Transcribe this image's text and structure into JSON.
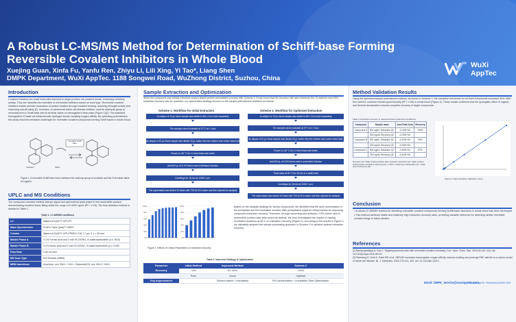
{
  "header": {
    "title": "A Robust LC-MS/MS Method for Determination of Schiff-base Forming Reversible Covalent Inhibitors in Whole Blood",
    "authors": "Xuejing Guan, Xinfa Fu, Yanfu Ren, Zhiyu Li, Lili Xing, Yi Tao*, Liang Shen",
    "affiliation": "DMPK Department, WuXi AppTec. 1188 Songwei Road, WuZhong District, Suzhou, China",
    "logo_text_1": "WuXi",
    "logo_text_2": "AppTec",
    "logo_icon": "wuxi-wave-logo"
  },
  "intro": {
    "title": "Introduction",
    "body": "Covalent inhibitors are small molecules that bind to target proteins via covalent bonds, enhancing inhibitory activity. They are classified as reversible or irreversible inhibitors based on bond type. Reversible covalent inhibitors enable periodic restoration of protein function through transient binding, reducing off-target toxicity and improving overall safety [1]. Voxelotor, a commercial sickle cell disease inhibitor, uses its aldehyde group to reversibly form a Schiff base with N-terminal valine on hemoglobin's beta chain (Figure 1)[2]. This stabilizes hemoglobin's R-state via intramolecular hydrogen bonds, boosting oxygen affinity. By optimizing pretreatment, this study resolved extraction challenges for reversible covalent compounds forming Schiff bases in whole blood.",
    "figure_caption": "Figure 1. A reversible Schiff base forms between the carbonyl group of voxelotor and the N-terminal valine of a globin",
    "fig_label_left": "Voxelotor",
    "fig_label_mid": "Valine",
    "fig_label_box": "Formation Schiff Base"
  },
  "uplc": {
    "title": "UPLC and MS Conditions",
    "body": "The compound voxelotor exhibits intense signal and symmetrical peak shape in test acetonitrile solution, demonstrating excellent linear fitting within the range of 5-3000 ng/mL (R² > 0.99). The final detection method is detailed in Table 1.",
    "table_title": "Table 1. LC-MS/MS conditions",
    "rows": [
      {
        "k": "LC",
        "v": "Waters ACQUITY UPLC®"
      },
      {
        "k": "Mass Spectrometer",
        "v": "SCIEX Triple Quad™ 6500+"
      },
      {
        "k": "Column",
        "v": "Waters ACQUITY UPLC®BEH C18 1.7 μm 2.1 × 50 mm"
      },
      {
        "k": "Mobile Phase A",
        "v": "0.1% Formic acid and 2 mM HCOONH₄ in water/acetonitrile (v:v, 95:5)"
      },
      {
        "k": "Mobile Phase B",
        "v": "0.1% formic acid and 2 mM HCOONH₄ in water/acetonitrile (v:v, 5:95)"
      },
      {
        "k": "Flow Rate",
        "v": "0.60 mL/min"
      },
      {
        "k": "MS Scan Type",
        "v": "ESI Positive (MRM)"
      },
      {
        "k": "MRM transitions",
        "v": "Voxelotor: m/z 338.1 / 130.1; Glyburide(IS): m/z 494.2 / 169.1"
      }
    ]
  },
  "extraction": {
    "title": "Sample Extraction and Optimization",
    "body": "When the compound was initially extracted using a simple protein precipitation process with Scheme 1, it was found that the recovery rate was extremely low. To achieve over 90% extraction recovery rate for voxelotor, our optimization strategy focuses on the sample pretreatment workflow as follows:",
    "scheme1_title": "Scheme 1. Workflow for Initial Extraction",
    "scheme1_steps": [
      "An aliquot of 10 μL blood sample was added to the 1.5 mL tube separately",
      "The samples were incubated at 37°C for 1 hour",
      "An aliquot of 10 μL blood sample was diluted 20 μL water, then the mixture was vortex mixed well.",
      "Frozen to -80 °C for 1 h then thaw and vortex",
      "Add 600 μL of 0.1% formic acid in Methanol Solution",
      "Centrifuge for 15 min at 12000 r.p.m.",
      "The supernatant was diluted 10 times with 70% ACN in water and then injected for analysis"
    ],
    "scheme2_title": "Scheme 2. Workflow for Optimized Extraction",
    "scheme2_steps": [
      "An aliquot of 10 μL blood sample was added to the 1.5 mL tube separately",
      "The samples were incubated at 37°C for 1 hour",
      "An aliquot of 10 μL blood sample was diluted 20 μL water, then the mixture was vortex mixed well.",
      "Frozen to -80 °C for 1 h then thaw and vortex",
      "Add 600 μL of 0.5% formic acid in acetonitrile Solution",
      "Thaw twice at 45 °C for 30 min in a water bath",
      "Centrifuge for 15 min at 12000 r.p.m.",
      "The supernatant was diluted 10 times with 70% ACN in water and then injected for analysis"
    ],
    "result_text": "Based on the analysis strategy for similar compounds, we identified that the acid concentration in the precipitant and the incubation duration after precipitation might be critical factors for improving compound extraction recovery. Therefore, through screening and selection, 0.5% formic acid in acetonitrile solution was determined as optimal. We then investigated the impact of varying incubation durations at 45°C on extraction recovery (Figure 2). According to the results in Figure 2, we ultimately adopted the sample processing approach in Scheme 2 to achieve optimal extraction recovery.",
    "fig2_caption": "Figure 2. Effects of Critical Parameters on extraction recovery",
    "table2_title": "Table 2. Improved Strategy & Optimization",
    "table2_headers": [
      "Parameter",
      "Initial Method",
      "Improved Method",
      "Scheme 2"
    ],
    "table2_rows": [
      [
        "Recovery",
        "~4%",
        "61~84%",
        ">90%"
      ],
      [
        "Linearity",
        "Poor",
        "Good",
        "Optimal"
      ],
      [
        "Key Improvement",
        "",
        "Solvent switch + Incubation",
        "FA Concentration + Incubation Time Optimization"
      ]
    ]
  },
  "fig2_chart": {
    "chart_data": [
      {
        "type": "bar",
        "categories": [
          "",
          "",
          "",
          "",
          "",
          "",
          "",
          "",
          ""
        ],
        "values": [
          58,
          72,
          84,
          91,
          94,
          95,
          96,
          96,
          97
        ],
        "ylim": [
          0,
          100
        ],
        "yticks": [
          "100%",
          "80%",
          "60%",
          "40%",
          "20%",
          "0%"
        ],
        "color": "#2f63c8"
      },
      {
        "type": "bar",
        "categories": [
          "",
          "",
          "",
          "",
          "",
          "",
          ""
        ],
        "values": [
          40,
          55,
          68,
          80,
          88,
          93,
          96
        ],
        "ylim": [
          0,
          100
        ],
        "yticks": [
          "100%",
          "80%",
          "60%",
          "40%",
          "20%",
          "0%"
        ],
        "color": "#2f63c8"
      }
    ]
  },
  "validation": {
    "title": "Method Validation Results",
    "body": "Using the optimized sample pretreatment method, as shown in Scheme 2, the extraction recoveries for all three compounds exceeded 90%. With this method, voxelotor showed good linearity (R² > 0.99) in whole blood (Figure 3). These results confirmed that the synergistic effect of organic and thermal denaturation ensures complete recovery of target compounds.",
    "table3_title": "Table 3. Extraction recovery in treasured blood (optimized conditions)",
    "table3_headers": [
      "Compound",
      "Sample name",
      "Area Peak Area",
      "Recovery"
    ],
    "table3_rows": [
      [
        "Compound A",
        "500 ng/mL Extraction QC",
        "4.100E+06",
        "100%"
      ],
      [
        "",
        "500 ng/mL Recovery QC",
        "4.100E+06",
        ""
      ],
      [
        "Compound B",
        "500 ng/mL Extraction QC",
        "3.020E+06",
        "93%"
      ],
      [
        "",
        "500 ng/mL Recovery QC",
        "3.240E+06",
        ""
      ],
      [
        "Compound C",
        "500 ng/mL Extraction QC",
        "2.900E+06",
        "97%"
      ],
      [
        "",
        "500 ng/mL Recovery QC",
        "3.010E+06",
        ""
      ]
    ],
    "table3_note": "Recovery QC: Spike working solution after extraction; Extraction QC: Spike working solution before extraction; Recovery(%) = 100% × Peak Area of Extraction QC / Peak area of Recovery QC",
    "fig3_caption": "Figure 3. Representative calibration curve"
  },
  "fig3_chart": {
    "chart_data": {
      "type": "scatter",
      "x": [
        5,
        10,
        50,
        100,
        500,
        1000,
        2000,
        3000
      ],
      "y": [
        5,
        10,
        50,
        100,
        500,
        1000,
        2000,
        3000
      ],
      "xlim": [
        0,
        3000
      ],
      "ylim": [
        0,
        3000
      ],
      "color": "#2f63c8"
    }
  },
  "conclusion": {
    "title": "Conclusion",
    "items": [
      "A robust LC-MS/MS method for detecting reversible covalent compounds forming Schiff-base structures in whole blood has been developed.",
      "This method achieves stable and relatively high extraction recovery rates, providing valuable reference for detecting similar reversible covalent drugs in future studies."
    ]
  },
  "references": {
    "title": "References",
    "items": [
      "[1] Bandyopadhyay A, Gao J. Targeting biomolecules with reversible covalent chemistry. Curr. Opin. Chem. Biol. 2016;34:110–116. doi: 10.1016/j.cbpa.2016.08.011",
      "[2] Stamberg D, Sofu K, Patel MP, et al. GBT440 increases haemoglobin oxygen affinity, reduces sickling and prolongs RBC half-life in a murine model of sickle cell disease. Br. J. Haematol. 2016;175:141–153. doi: 10.1111/bjh.14214"
    ],
    "email": "Email: DMPK_Service@wuxiapptec.com",
    "copyright": "© WuXi AppTec. Presented at ASMS 2025"
  },
  "colors": {
    "brand_dark": "#1f3f8f",
    "brand": "#2f63c8",
    "table_header": "#2d4fa8"
  }
}
